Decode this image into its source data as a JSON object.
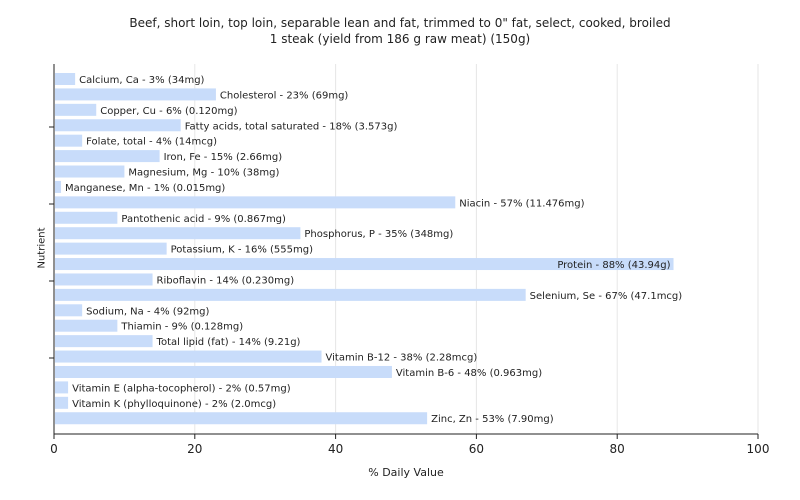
{
  "chart_data": {
    "type": "bar",
    "orientation": "horizontal",
    "title": "Beef, short loin, top loin, separable lean and fat, trimmed to 0\" fat, select, cooked, broiled",
    "subtitle": "1 steak (yield from 186 g raw meat) (150g)",
    "xlabel": "% Daily Value",
    "ylabel": "Nutrient",
    "xlim": [
      0,
      100
    ],
    "xticks": [
      "0",
      "20",
      "40",
      "60",
      "80",
      "100"
    ],
    "grid": true,
    "bar_color": "#c8dcfa",
    "categories": [
      "Calcium, Ca",
      "Cholesterol",
      "Copper, Cu",
      "Fatty acids, total saturated",
      "Folate, total",
      "Iron, Fe",
      "Magnesium, Mg",
      "Manganese, Mn",
      "Niacin",
      "Pantothenic acid",
      "Phosphorus, P",
      "Potassium, K",
      "Protein",
      "Riboflavin",
      "Selenium, Se",
      "Sodium, Na",
      "Thiamin",
      "Total lipid (fat)",
      "Vitamin B-12",
      "Vitamin B-6",
      "Vitamin E (alpha-tocopherol)",
      "Vitamin K (phylloquinone)",
      "Zinc, Zn"
    ],
    "values": [
      3,
      23,
      6,
      18,
      4,
      15,
      10,
      1,
      57,
      9,
      35,
      16,
      88,
      14,
      67,
      4,
      9,
      14,
      38,
      48,
      2,
      2,
      53
    ],
    "labels": [
      "Calcium, Ca - 3% (34mg)",
      "Cholesterol - 23% (69mg)",
      "Copper, Cu - 6% (0.120mg)",
      "Fatty acids, total saturated - 18% (3.573g)",
      "Folate, total - 4% (14mcg)",
      "Iron, Fe - 15% (2.66mg)",
      "Magnesium, Mg - 10% (38mg)",
      "Manganese, Mn - 1% (0.015mg)",
      "Niacin - 57% (11.476mg)",
      "Pantothenic acid - 9% (0.867mg)",
      "Phosphorus, P - 35% (348mg)",
      "Potassium, K - 16% (555mg)",
      "Protein - 88% (43.94g)",
      "Riboflavin - 14% (0.230mg)",
      "Selenium, Se - 67% (47.1mcg)",
      "Sodium, Na - 4% (92mg)",
      "Thiamin - 9% (0.128mg)",
      "Total lipid (fat) - 14% (9.21g)",
      "Vitamin B-12 - 38% (2.28mcg)",
      "Vitamin B-6 - 48% (0.963mg)",
      "Vitamin E (alpha-tocopherol) - 2% (0.57mg)",
      "Vitamin K (phylloquinone) - 2% (2.0mcg)",
      "Zinc, Zn - 53% (7.90mg)"
    ]
  }
}
